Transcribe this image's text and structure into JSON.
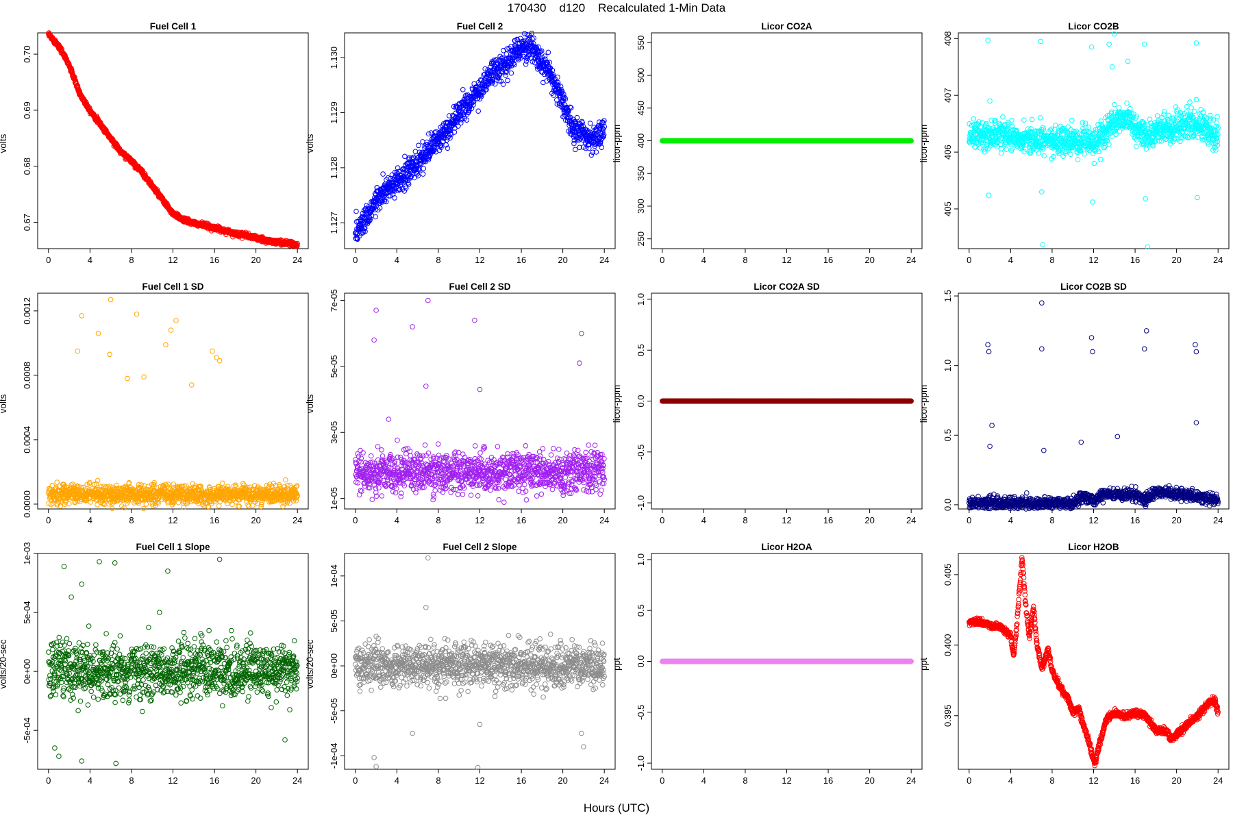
{
  "title": "170430    d120    Recalculated 1-Min Data",
  "x_axis_title": "Hours (UTC)",
  "chart_data": [
    {
      "type": "scatter",
      "title": "Fuel Cell 1",
      "ylabel": "volts",
      "color": "#ff0000",
      "xlim": [
        0,
        24
      ],
      "ylim": [
        0.6653,
        0.7038
      ],
      "xticks": [
        0,
        4,
        8,
        12,
        16,
        20,
        24
      ],
      "yticks": [
        0.67,
        0.68,
        0.69,
        0.7
      ],
      "ytick_labels": [
        "0.67",
        "0.68",
        "0.69",
        "0.70"
      ],
      "trend": [
        [
          0,
          0.7035
        ],
        [
          1,
          0.7015
        ],
        [
          2,
          0.698
        ],
        [
          3,
          0.693
        ],
        [
          4,
          0.69
        ],
        [
          5,
          0.6875
        ],
        [
          6,
          0.685
        ],
        [
          7,
          0.6825
        ],
        [
          8,
          0.681
        ],
        [
          9,
          0.679
        ],
        [
          10,
          0.6765
        ],
        [
          11,
          0.674
        ],
        [
          12,
          0.6715
        ],
        [
          13,
          0.6705
        ],
        [
          14,
          0.6698
        ],
        [
          15,
          0.6695
        ],
        [
          16,
          0.669
        ],
        [
          17,
          0.6685
        ],
        [
          18,
          0.668
        ],
        [
          19,
          0.6677
        ],
        [
          20,
          0.6672
        ],
        [
          21,
          0.6667
        ],
        [
          22,
          0.6665
        ],
        [
          23,
          0.6663
        ],
        [
          24,
          0.666
        ]
      ],
      "noise": 0.0002,
      "outliers": []
    },
    {
      "type": "scatter",
      "title": "Fuel Cell 2",
      "ylabel": "volts",
      "color": "#0000ff",
      "xlim": [
        0,
        24
      ],
      "ylim": [
        1.12653,
        1.13045
      ],
      "xticks": [
        0,
        4,
        8,
        12,
        16,
        20,
        24
      ],
      "yticks": [
        1.127,
        1.128,
        1.129,
        1.13
      ],
      "ytick_labels": [
        "1.127",
        "1.128",
        "1.129",
        "1.130"
      ],
      "trend": [
        [
          0,
          1.1268
        ],
        [
          1,
          1.1271
        ],
        [
          2,
          1.1274
        ],
        [
          3,
          1.1276
        ],
        [
          4,
          1.1277
        ],
        [
          5,
          1.1279
        ],
        [
          6,
          1.1281
        ],
        [
          7,
          1.1283
        ],
        [
          8,
          1.1285
        ],
        [
          9,
          1.1287
        ],
        [
          10,
          1.129
        ],
        [
          11,
          1.1292
        ],
        [
          12,
          1.1294
        ],
        [
          13,
          1.1297
        ],
        [
          14,
          1.1298
        ],
        [
          15,
          1.13
        ],
        [
          16,
          1.1302
        ],
        [
          17,
          1.1302
        ],
        [
          18,
          1.1299
        ],
        [
          19,
          1.1296
        ],
        [
          20,
          1.1292
        ],
        [
          21,
          1.1287
        ],
        [
          22,
          1.1286
        ],
        [
          23,
          1.1285
        ],
        [
          24,
          1.1287
        ]
      ],
      "noise": 0.00012,
      "outliers": []
    },
    {
      "type": "scatter",
      "title": "Licor CO2A",
      "ylabel": "licor-ppm",
      "color": "#00ee00",
      "xlim": [
        0,
        24
      ],
      "ylim": [
        235,
        565
      ],
      "xticks": [
        0,
        4,
        8,
        12,
        16,
        20,
        24
      ],
      "yticks": [
        250,
        300,
        350,
        400,
        450,
        500,
        550
      ],
      "ytick_labels": [
        "250",
        "300",
        "350",
        "400",
        "450",
        "500",
        "550"
      ],
      "trend": [
        [
          0,
          400
        ],
        [
          24,
          400
        ]
      ],
      "noise": 0,
      "outliers": []
    },
    {
      "type": "scatter",
      "title": "Licor CO2B",
      "ylabel": "licor-ppm",
      "color": "#00ffff",
      "xlim": [
        0,
        24
      ],
      "ylim": [
        404.3,
        408.1
      ],
      "xticks": [
        0,
        4,
        8,
        12,
        16,
        20,
        24
      ],
      "yticks": [
        405,
        406,
        407,
        408
      ],
      "ytick_labels": [
        "405",
        "406",
        "407",
        "408"
      ],
      "trend": [
        [
          0,
          406.3
        ],
        [
          4,
          406.3
        ],
        [
          7,
          406.2
        ],
        [
          11,
          406.2
        ],
        [
          12,
          406.15
        ],
        [
          13,
          406.3
        ],
        [
          14,
          406.55
        ],
        [
          15,
          406.6
        ],
        [
          17,
          406.3
        ],
        [
          18,
          406.35
        ],
        [
          20,
          406.45
        ],
        [
          22,
          406.5
        ],
        [
          24,
          406.3
        ]
      ],
      "noise": 0.12,
      "outliers": [
        [
          1.8,
          407.97
        ],
        [
          1.9,
          405.24
        ],
        [
          2.0,
          406.9
        ],
        [
          6.9,
          407.95
        ],
        [
          7.0,
          405.3
        ],
        [
          7.1,
          404.37
        ],
        [
          11.8,
          407.85
        ],
        [
          11.9,
          405.12
        ],
        [
          13.5,
          407.9
        ],
        [
          16.9,
          407.9
        ],
        [
          17.0,
          405.18
        ],
        [
          17.2,
          404.33
        ],
        [
          21.9,
          407.92
        ],
        [
          22.0,
          405.2
        ],
        [
          14.0,
          408.08
        ],
        [
          13.8,
          407.5
        ],
        [
          15.3,
          407.6
        ]
      ]
    },
    {
      "type": "scatter",
      "title": "Fuel Cell 1 SD",
      "ylabel": "volts",
      "color": "#ffa500",
      "xlim": [
        0,
        24
      ],
      "ylim": [
        -3e-05,
        0.00131
      ],
      "xticks": [
        0,
        4,
        8,
        12,
        16,
        20,
        24
      ],
      "yticks": [
        0,
        0.0004,
        0.0008,
        0.0012
      ],
      "ytick_labels": [
        "0.0000",
        "0.0004",
        "0.0008",
        "0.0012"
      ],
      "trend": [
        [
          0,
          6e-05
        ],
        [
          24,
          6e-05
        ]
      ],
      "noise": 3e-05,
      "outliers": [
        [
          6,
          0.00127
        ],
        [
          3.2,
          0.00117
        ],
        [
          8.5,
          0.00118
        ],
        [
          12.3,
          0.00114
        ],
        [
          11.8,
          0.00108
        ],
        [
          4.8,
          0.00106
        ],
        [
          5.9,
          0.00093
        ],
        [
          2.8,
          0.00095
        ],
        [
          15.8,
          0.00095
        ],
        [
          16.2,
          0.00091
        ],
        [
          16.5,
          0.00089
        ],
        [
          11.3,
          0.00099
        ],
        [
          9.2,
          0.00079
        ],
        [
          7.6,
          0.00078
        ],
        [
          13.8,
          0.00074
        ]
      ]
    },
    {
      "type": "scatter",
      "title": "Fuel Cell 2 SD",
      "ylabel": "volts",
      "color": "#a020f0",
      "xlim": [
        0,
        24
      ],
      "ylim": [
        6.8e-06,
        7.22e-05
      ],
      "xticks": [
        0,
        4,
        8,
        12,
        16,
        20,
        24
      ],
      "yticks": [
        1e-05,
        3e-05,
        5e-05,
        7e-05
      ],
      "ytick_labels": [
        "1e-05",
        "3e-05",
        "5e-05",
        "7e-05"
      ],
      "trend": [
        [
          0,
          1.8e-05
        ],
        [
          24,
          1.8e-05
        ]
      ],
      "noise": 3e-06,
      "outliers": [
        [
          7,
          7e-05
        ],
        [
          2,
          6.7e-05
        ],
        [
          5.5,
          6.2e-05
        ],
        [
          11.5,
          6.4e-05
        ],
        [
          1.8,
          5.8e-05
        ],
        [
          21.8,
          6e-05
        ],
        [
          21.6,
          5.1e-05
        ],
        [
          6.8,
          4.4e-05
        ],
        [
          12,
          4.3e-05
        ],
        [
          3.2,
          3.4e-05
        ]
      ]
    },
    {
      "type": "scatter",
      "title": "Licor CO2A SD",
      "ylabel": "licor-ppm",
      "color": "#8b0000",
      "xlim": [
        0,
        24
      ],
      "ylim": [
        -1.06,
        1.06
      ],
      "xticks": [
        0,
        4,
        8,
        12,
        16,
        20,
        24
      ],
      "yticks": [
        -1,
        -0.5,
        0,
        0.5,
        1
      ],
      "ytick_labels": [
        "-1.0",
        "-0.5",
        "0.0",
        "0.5",
        "1.0"
      ],
      "trend": [
        [
          0,
          0
        ],
        [
          24,
          0
        ]
      ],
      "noise": 0,
      "outliers": []
    },
    {
      "type": "scatter",
      "title": "Licor CO2B SD",
      "ylabel": "licor-ppm",
      "color": "#000080",
      "xlim": [
        0,
        24
      ],
      "ylim": [
        -0.03,
        1.52
      ],
      "xticks": [
        0,
        4,
        8,
        12,
        16,
        20,
        24
      ],
      "yticks": [
        0,
        0.5,
        1,
        1.5
      ],
      "ytick_labels": [
        "0.0",
        "0.5",
        "1.0",
        "1.5"
      ],
      "trend": [
        [
          0,
          0.01
        ],
        [
          10,
          0.01
        ],
        [
          11,
          0.06
        ],
        [
          12,
          0.02
        ],
        [
          13,
          0.08
        ],
        [
          16,
          0.07
        ],
        [
          17,
          0.04
        ],
        [
          18,
          0.09
        ],
        [
          21,
          0.07
        ],
        [
          24,
          0.03
        ]
      ],
      "noise": 0.02,
      "outliers": [
        [
          7,
          1.45
        ],
        [
          1.8,
          1.15
        ],
        [
          1.9,
          1.1
        ],
        [
          7.0,
          1.12
        ],
        [
          11.8,
          1.2
        ],
        [
          11.9,
          1.1
        ],
        [
          16.9,
          1.12
        ],
        [
          17.1,
          1.25
        ],
        [
          21.8,
          1.15
        ],
        [
          21.9,
          1.1
        ],
        [
          2.2,
          0.57
        ],
        [
          2.0,
          0.42
        ],
        [
          7.2,
          0.39
        ],
        [
          21.9,
          0.59
        ],
        [
          10.8,
          0.45
        ],
        [
          14.3,
          0.49
        ]
      ]
    },
    {
      "type": "scatter",
      "title": "Fuel Cell 1 Slope",
      "ylabel": "volts/20-sec",
      "color": "#006400",
      "xlim": [
        0,
        24
      ],
      "ylim": [
        -0.00083,
        0.001
      ],
      "xticks": [
        0,
        4,
        8,
        12,
        16,
        20,
        24
      ],
      "yticks": [
        -0.0005,
        0,
        0.0005,
        0.001
      ],
      "ytick_labels": [
        "-5e-04",
        "0e+00",
        "5e-04",
        "1e-03"
      ],
      "trend": [
        [
          0,
          0
        ],
        [
          24,
          0
        ]
      ],
      "noise": 0.00012,
      "outliers": [
        [
          1.5,
          0.00089
        ],
        [
          4.9,
          0.00093
        ],
        [
          6.4,
          0.00092
        ],
        [
          16.5,
          0.00095
        ],
        [
          11.5,
          0.00085
        ],
        [
          6.5,
          -0.00078
        ],
        [
          3.2,
          -0.00076
        ],
        [
          1.0,
          -0.00072
        ],
        [
          0.6,
          -0.00065
        ],
        [
          22.8,
          -0.00058
        ],
        [
          2.2,
          0.00063
        ],
        [
          3.2,
          0.00074
        ],
        [
          10.7,
          0.0005
        ]
      ]
    },
    {
      "type": "scatter",
      "title": "Fuel Cell 2 Slope",
      "ylabel": "volts/20-sec",
      "color": "#8c8c8c",
      "xlim": [
        0,
        24
      ],
      "ylim": [
        -0.000115,
        0.000125
      ],
      "xticks": [
        0,
        4,
        8,
        12,
        16,
        20,
        24
      ],
      "yticks": [
        -0.0001,
        -5e-05,
        0,
        5e-05,
        0.0001
      ],
      "ytick_labels": [
        "-1e-04",
        "-5e-05",
        "0e+00",
        "5e-05",
        "1e-04"
      ],
      "trend": [
        [
          0,
          0
        ],
        [
          24,
          0
        ]
      ],
      "noise": 1.2e-05,
      "outliers": [
        [
          7,
          0.00012
        ],
        [
          6.8,
          6.5e-05
        ],
        [
          1.8,
          -0.000102
        ],
        [
          2.0,
          -0.000112
        ],
        [
          11.8,
          -0.000113
        ],
        [
          5.5,
          -7.5e-05
        ],
        [
          12,
          -6.5e-05
        ],
        [
          21.8,
          -7.5e-05
        ],
        [
          22,
          -9e-05
        ]
      ]
    },
    {
      "type": "scatter",
      "title": "Licor H2OA",
      "ylabel": "ppt",
      "color": "#ee82ee",
      "xlim": [
        0,
        24
      ],
      "ylim": [
        -1.06,
        1.06
      ],
      "xticks": [
        0,
        4,
        8,
        12,
        16,
        20,
        24
      ],
      "yticks": [
        -1,
        -0.5,
        0,
        0.5,
        1
      ],
      "ytick_labels": [
        "-1.0",
        "-0.5",
        "0.0",
        "0.5",
        "1.0"
      ],
      "trend": [
        [
          0,
          0
        ],
        [
          24,
          0
        ]
      ],
      "noise": 0,
      "outliers": []
    },
    {
      "type": "scatter",
      "title": "Licor H2OB",
      "ylabel": "ppt",
      "color": "#ff0000",
      "xlim": [
        0,
        24
      ],
      "ylim": [
        0.3912,
        0.4065
      ],
      "xticks": [
        0,
        4,
        8,
        12,
        16,
        20,
        24
      ],
      "yticks": [
        0.395,
        0.4,
        0.405
      ],
      "ytick_labels": [
        "0.395",
        "0.400",
        "0.405"
      ],
      "trend": [
        [
          0,
          0.4016
        ],
        [
          1,
          0.4017
        ],
        [
          2,
          0.4014
        ],
        [
          3,
          0.4013
        ],
        [
          4,
          0.4007
        ],
        [
          4.3,
          0.3992
        ],
        [
          4.6,
          0.4015
        ],
        [
          5.1,
          0.4062
        ],
        [
          5.5,
          0.4025
        ],
        [
          5.8,
          0.4006
        ],
        [
          6.2,
          0.4027
        ],
        [
          6.5,
          0.4003
        ],
        [
          7,
          0.3983
        ],
        [
          7.6,
          0.3997
        ],
        [
          8,
          0.3982
        ],
        [
          8.5,
          0.3974
        ],
        [
          9,
          0.3967
        ],
        [
          9.5,
          0.3963
        ],
        [
          10,
          0.3952
        ],
        [
          10.6,
          0.3955
        ],
        [
          11,
          0.3944
        ],
        [
          11.5,
          0.3933
        ],
        [
          12.1,
          0.3916
        ],
        [
          12.5,
          0.3928
        ],
        [
          13.2,
          0.3947
        ],
        [
          14,
          0.3952
        ],
        [
          15,
          0.395
        ],
        [
          16,
          0.3952
        ],
        [
          17,
          0.395
        ],
        [
          18,
          0.394
        ],
        [
          19,
          0.3939
        ],
        [
          19.5,
          0.3933
        ],
        [
          20,
          0.3937
        ],
        [
          21,
          0.3943
        ],
        [
          22,
          0.395
        ],
        [
          23,
          0.3958
        ],
        [
          23.6,
          0.3962
        ],
        [
          24,
          0.3953
        ]
      ],
      "noise": 0.00012,
      "outliers": []
    }
  ]
}
